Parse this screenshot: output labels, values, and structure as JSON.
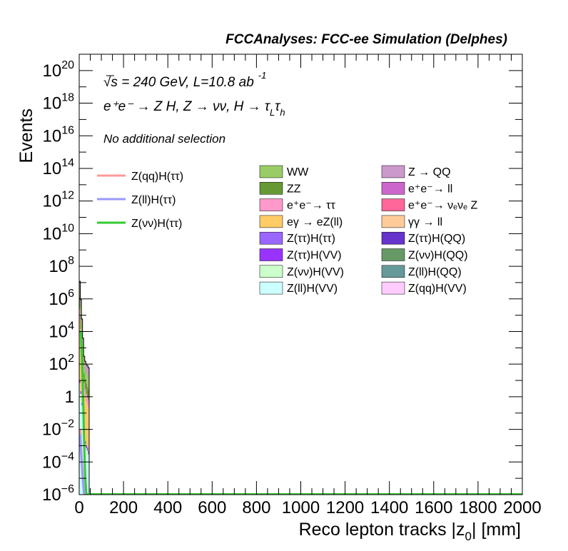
{
  "chart_data": {
    "type": "histogram",
    "header": "FCCAnalyses: FCC-ee Simulation (Delphes)",
    "xlabel": "Reco lepton tracks |z",
    "xlabel_sub": "0",
    "xlabel_tail": "| [mm]",
    "ylabel": "Events",
    "xlim": [
      0,
      2000
    ],
    "ylim": [
      1e-06,
      1e+21
    ],
    "yscale": "log",
    "grid": false,
    "x_ticks": [
      "0",
      "200",
      "400",
      "600",
      "800",
      "1000",
      "1200",
      "1400",
      "1600",
      "1800",
      "2000"
    ],
    "y_ticks": [
      {
        "base": "10",
        "exp": "20",
        "value": 1e+20
      },
      {
        "base": "10",
        "exp": "18",
        "value": 1e+18
      },
      {
        "base": "10",
        "exp": "16",
        "value": 1e+16
      },
      {
        "base": "10",
        "exp": "14",
        "value": 100000000000000.0
      },
      {
        "base": "10",
        "exp": "12",
        "value": 1000000000000.0
      },
      {
        "base": "10",
        "exp": "10",
        "value": 10000000000.0
      },
      {
        "base": "10",
        "exp": "8",
        "value": 100000000.0
      },
      {
        "base": "10",
        "exp": "6",
        "value": 1000000.0
      },
      {
        "base": "10",
        "exp": "4",
        "value": 10000.0
      },
      {
        "base": "10",
        "exp": "2",
        "value": 100.0
      },
      {
        "base": "1",
        "exp": "",
        "value": 1
      },
      {
        "base": "10",
        "exp": "−2",
        "value": 0.01
      },
      {
        "base": "10",
        "exp": "−4",
        "value": 0.0001
      },
      {
        "base": "10",
        "exp": "−6",
        "value": 1e-06
      }
    ],
    "annotations": {
      "sqrt_s": "√s = 240 GeV, L=10.8 ab",
      "lumi_exp": "-1",
      "process": "e⁺e⁻ → Z H, Z → νν, H → τ",
      "proc_sub1": "L",
      "proc_tau": "τ",
      "proc_sub2": "h",
      "selection": "No additional selection"
    },
    "stack": {
      "bin_edges": [
        0,
        5,
        10,
        15,
        20,
        25,
        30,
        35,
        40,
        45
      ],
      "total": [
        12000000.0,
        900000.0,
        60000.0,
        4000.0,
        300,
        150,
        100,
        80,
        60
      ],
      "layers": [
        {
          "name": "Z(ll)H(VV)",
          "color": "#ccffff",
          "values": [
            2,
            0.5,
            0.1,
            0.01,
            0.001,
            0.0005,
            0.0003,
            0.0002,
            0.0001
          ]
        },
        {
          "name": "Z(νν)H(VV)",
          "color": "#ccffcc",
          "values": [
            5,
            1,
            0.2,
            0.02,
            0.002,
            0.0008,
            0.0004,
            0.0003,
            0.0002
          ]
        },
        {
          "name": "Z(ττ)H(VV)",
          "color": "#9933ff",
          "values": [
            3,
            0.6,
            0.1,
            0.01,
            0.001,
            0.0005,
            0.0003,
            0.0002,
            0.0001
          ]
        },
        {
          "name": "Z(ττ)H(ττ)",
          "color": "#9966ff",
          "values": [
            0.5,
            0.1,
            0.02,
            0.002,
            0.0002,
            0.0001,
            0.0001,
            0.0001,
            0.0001
          ]
        },
        {
          "name": "eγ → eZ(ll)",
          "color": "#ffcc66",
          "values": [
            50000.0,
            4000.0,
            300,
            20,
            2,
            1,
            0.5,
            0.3,
            0.2
          ]
        },
        {
          "name": "e⁺e⁻→ ττ",
          "color": "#ff99cc",
          "values": [
            200000.0,
            10000.0,
            800,
            60,
            5,
            2,
            1,
            0.6,
            0.4
          ]
        },
        {
          "name": "ZZ",
          "color": "#669933",
          "values": [
            1000000.0,
            80000.0,
            5000.0,
            300,
            20,
            8,
            5,
            3,
            2
          ]
        },
        {
          "name": "WW",
          "color": "#99cc66",
          "values": [
            4000000.0,
            300000.0,
            20000.0,
            1500.0,
            100,
            40,
            25,
            20,
            15
          ]
        },
        {
          "name": "Z → QQ",
          "color": "#cc99cc",
          "values": [
            5000000.0,
            400000.0,
            30000.0,
            2000.0,
            170,
            90,
            65,
            55,
            42
          ]
        },
        {
          "name": "e⁺e⁻→ ll",
          "color": "#cc66cc",
          "values": [
            1500000.0,
            100000.0,
            5000.0,
            300,
            10,
            5,
            3,
            2,
            1
          ]
        }
      ]
    },
    "signal_lines": [
      {
        "name": "Z(qq)H(ττ)",
        "color": "#ff9999",
        "x": [
          5,
          7.5,
          12.5,
          17.5,
          22.5
        ],
        "values": [
          0.01,
          0.001,
          0.0001,
          1e-05,
          1e-06
        ]
      },
      {
        "name": "Z(ll)H(ττ)",
        "color": "#9999ff",
        "x": [
          5,
          7.5,
          12.5,
          17.5,
          22.5
        ],
        "values": [
          0.005,
          0.0005,
          5e-05,
          5e-06,
          1e-06
        ]
      },
      {
        "name": "Z(νν)H(ττ)",
        "color": "#33cc33",
        "x": [
          5,
          7.5,
          12.5,
          17.5,
          22.5,
          27.5,
          32.5
        ],
        "values": [
          10000.0,
          10000.0,
          200,
          1,
          0.001,
          1e-05,
          1e-06
        ]
      }
    ],
    "legend": {
      "placement": "top-right",
      "lines": [
        {
          "name": "Z(qq)H(ττ)",
          "color": "#ff9999"
        },
        {
          "name": "Z(ll)H(ττ)",
          "color": "#9999ff"
        },
        {
          "name": "Z(νν)H(ττ)",
          "color": "#33cc33"
        }
      ],
      "col1": [
        {
          "name": "WW",
          "color": "#99cc66"
        },
        {
          "name": "ZZ",
          "color": "#669933"
        },
        {
          "name": "e⁺e⁻→ ττ",
          "color": "#ff99cc"
        },
        {
          "name": "eγ → eZ(ll)",
          "color": "#ffcc66"
        },
        {
          "name": "Z(ττ)H(ττ)",
          "color": "#9966ff"
        },
        {
          "name": "Z(ττ)H(VV)",
          "color": "#9933ff"
        },
        {
          "name": "Z(νν)H(VV)",
          "color": "#ccffcc"
        },
        {
          "name": "Z(ll)H(VV)",
          "color": "#ccffff"
        }
      ],
      "col2": [
        {
          "name": "Z → QQ",
          "color": "#cc99cc"
        },
        {
          "name": "e⁺e⁻→ ll",
          "color": "#cc66cc"
        },
        {
          "name": "e⁺e⁻→ νₑνₑ Z",
          "color": "#ff6699"
        },
        {
          "name": "γγ → ll",
          "color": "#ffcc99"
        },
        {
          "name": "Z(ττ)H(QQ)",
          "color": "#6633cc"
        },
        {
          "name": "Z(νν)H(QQ)",
          "color": "#669966"
        },
        {
          "name": "Z(ll)H(QQ)",
          "color": "#669999"
        },
        {
          "name": "Z(qq)H(VV)",
          "color": "#ffccff"
        }
      ]
    }
  }
}
